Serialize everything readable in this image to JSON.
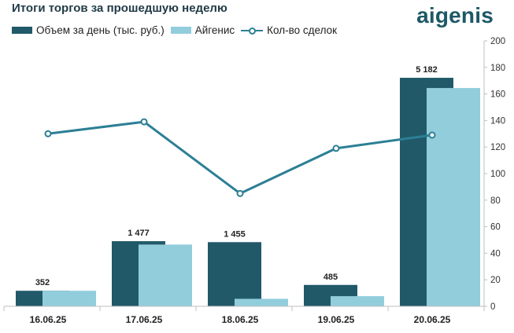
{
  "title": "Итоги торгов за прошедшую неделю",
  "logo": "aigenis",
  "colors": {
    "volume": "#215968",
    "aigenis": "#92cddc",
    "deals": "#2c7f95",
    "title": "#1f3a46"
  },
  "chart_data": {
    "type": "bar",
    "categories": [
      "16.06.25",
      "17.06.25",
      "18.06.25",
      "19.06.25",
      "20.06.25"
    ],
    "series": [
      {
        "name": "Объем за день (тыс. руб.)",
        "type": "bar",
        "axis": "left",
        "values": [
          352,
          1477,
          1455,
          485,
          5182
        ],
        "labels": [
          "352",
          "1 477",
          "1 455",
          "485",
          "5 182"
        ]
      },
      {
        "name": "Айгенис",
        "type": "bar",
        "axis": "left",
        "values": [
          352,
          1400,
          170,
          230,
          4950
        ]
      },
      {
        "name": "Кол-во сделок",
        "type": "line",
        "axis": "right",
        "values": [
          130,
          139,
          85,
          119,
          129
        ]
      }
    ],
    "left_axis": {
      "visible": false,
      "ylim": [
        0,
        6020
      ]
    },
    "right_axis": {
      "ylim": [
        0,
        200
      ],
      "ticks": [
        "0",
        "20",
        "40",
        "60",
        "80",
        "100",
        "120",
        "140",
        "160",
        "180",
        "200"
      ]
    },
    "grid": false,
    "legend": "top-left"
  }
}
